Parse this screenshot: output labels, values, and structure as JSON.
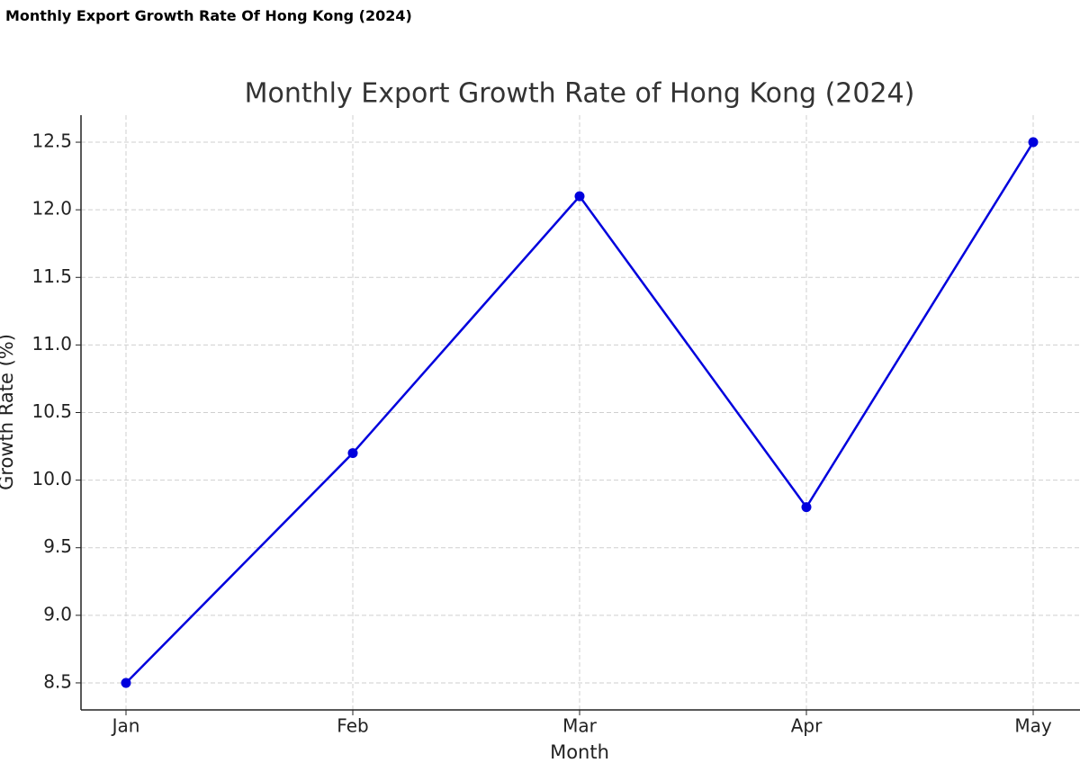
{
  "header": {
    "title": "Monthly Export Growth Rate Of Hong Kong (2024)"
  },
  "chart_data": {
    "type": "line",
    "title": "Monthly Export Growth Rate of Hong Kong (2024)",
    "x_label": "Month",
    "y_label": "Growth Rate (%)",
    "categories": [
      "Jan",
      "Feb",
      "Mar",
      "Apr",
      "May"
    ],
    "values": [
      8.5,
      10.2,
      12.1,
      9.8,
      12.5
    ],
    "color": "#0000dd",
    "ylim": [
      8.3,
      12.7
    ],
    "yticks": [
      8.5,
      {
        "value": 9,
        "label": "9.0"
      },
      9.5,
      {
        "value": 10,
        "label": "10.0"
      },
      10.5,
      {
        "value": 11,
        "label": "11.0"
      },
      11.5,
      {
        "value": 12,
        "label": "12.0"
      },
      12.5
    ],
    "grid": true
  }
}
